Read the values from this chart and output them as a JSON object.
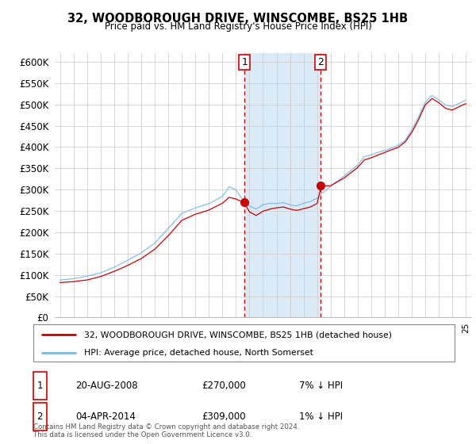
{
  "title": "32, WOODBOROUGH DRIVE, WINSCOMBE, BS25 1HB",
  "subtitle": "Price paid vs. HM Land Registry's House Price Index (HPI)",
  "legend_line1": "32, WOODBOROUGH DRIVE, WINSCOMBE, BS25 1HB (detached house)",
  "legend_line2": "HPI: Average price, detached house, North Somerset",
  "annotation1_date": "20-AUG-2008",
  "annotation1_price": "£270,000",
  "annotation1_hpi": "7% ↓ HPI",
  "annotation2_date": "04-APR-2014",
  "annotation2_price": "£309,000",
  "annotation2_hpi": "1% ↓ HPI",
  "footer": "Contains HM Land Registry data © Crown copyright and database right 2024.\nThis data is licensed under the Open Government Licence v3.0.",
  "hpi_color": "#7ab8e8",
  "price_color": "#cc0000",
  "highlight_color": "#daeaf7",
  "annotation_color": "#cc0000",
  "ylim": [
    0,
    620000
  ],
  "shade_x_start": 2008.64,
  "shade_x_end": 2014.27,
  "ann1_x": 2008.64,
  "ann1_y": 270000,
  "ann2_x": 2014.27,
  "ann2_y": 309000,
  "xmin": 1994.6,
  "xmax": 2025.4
}
